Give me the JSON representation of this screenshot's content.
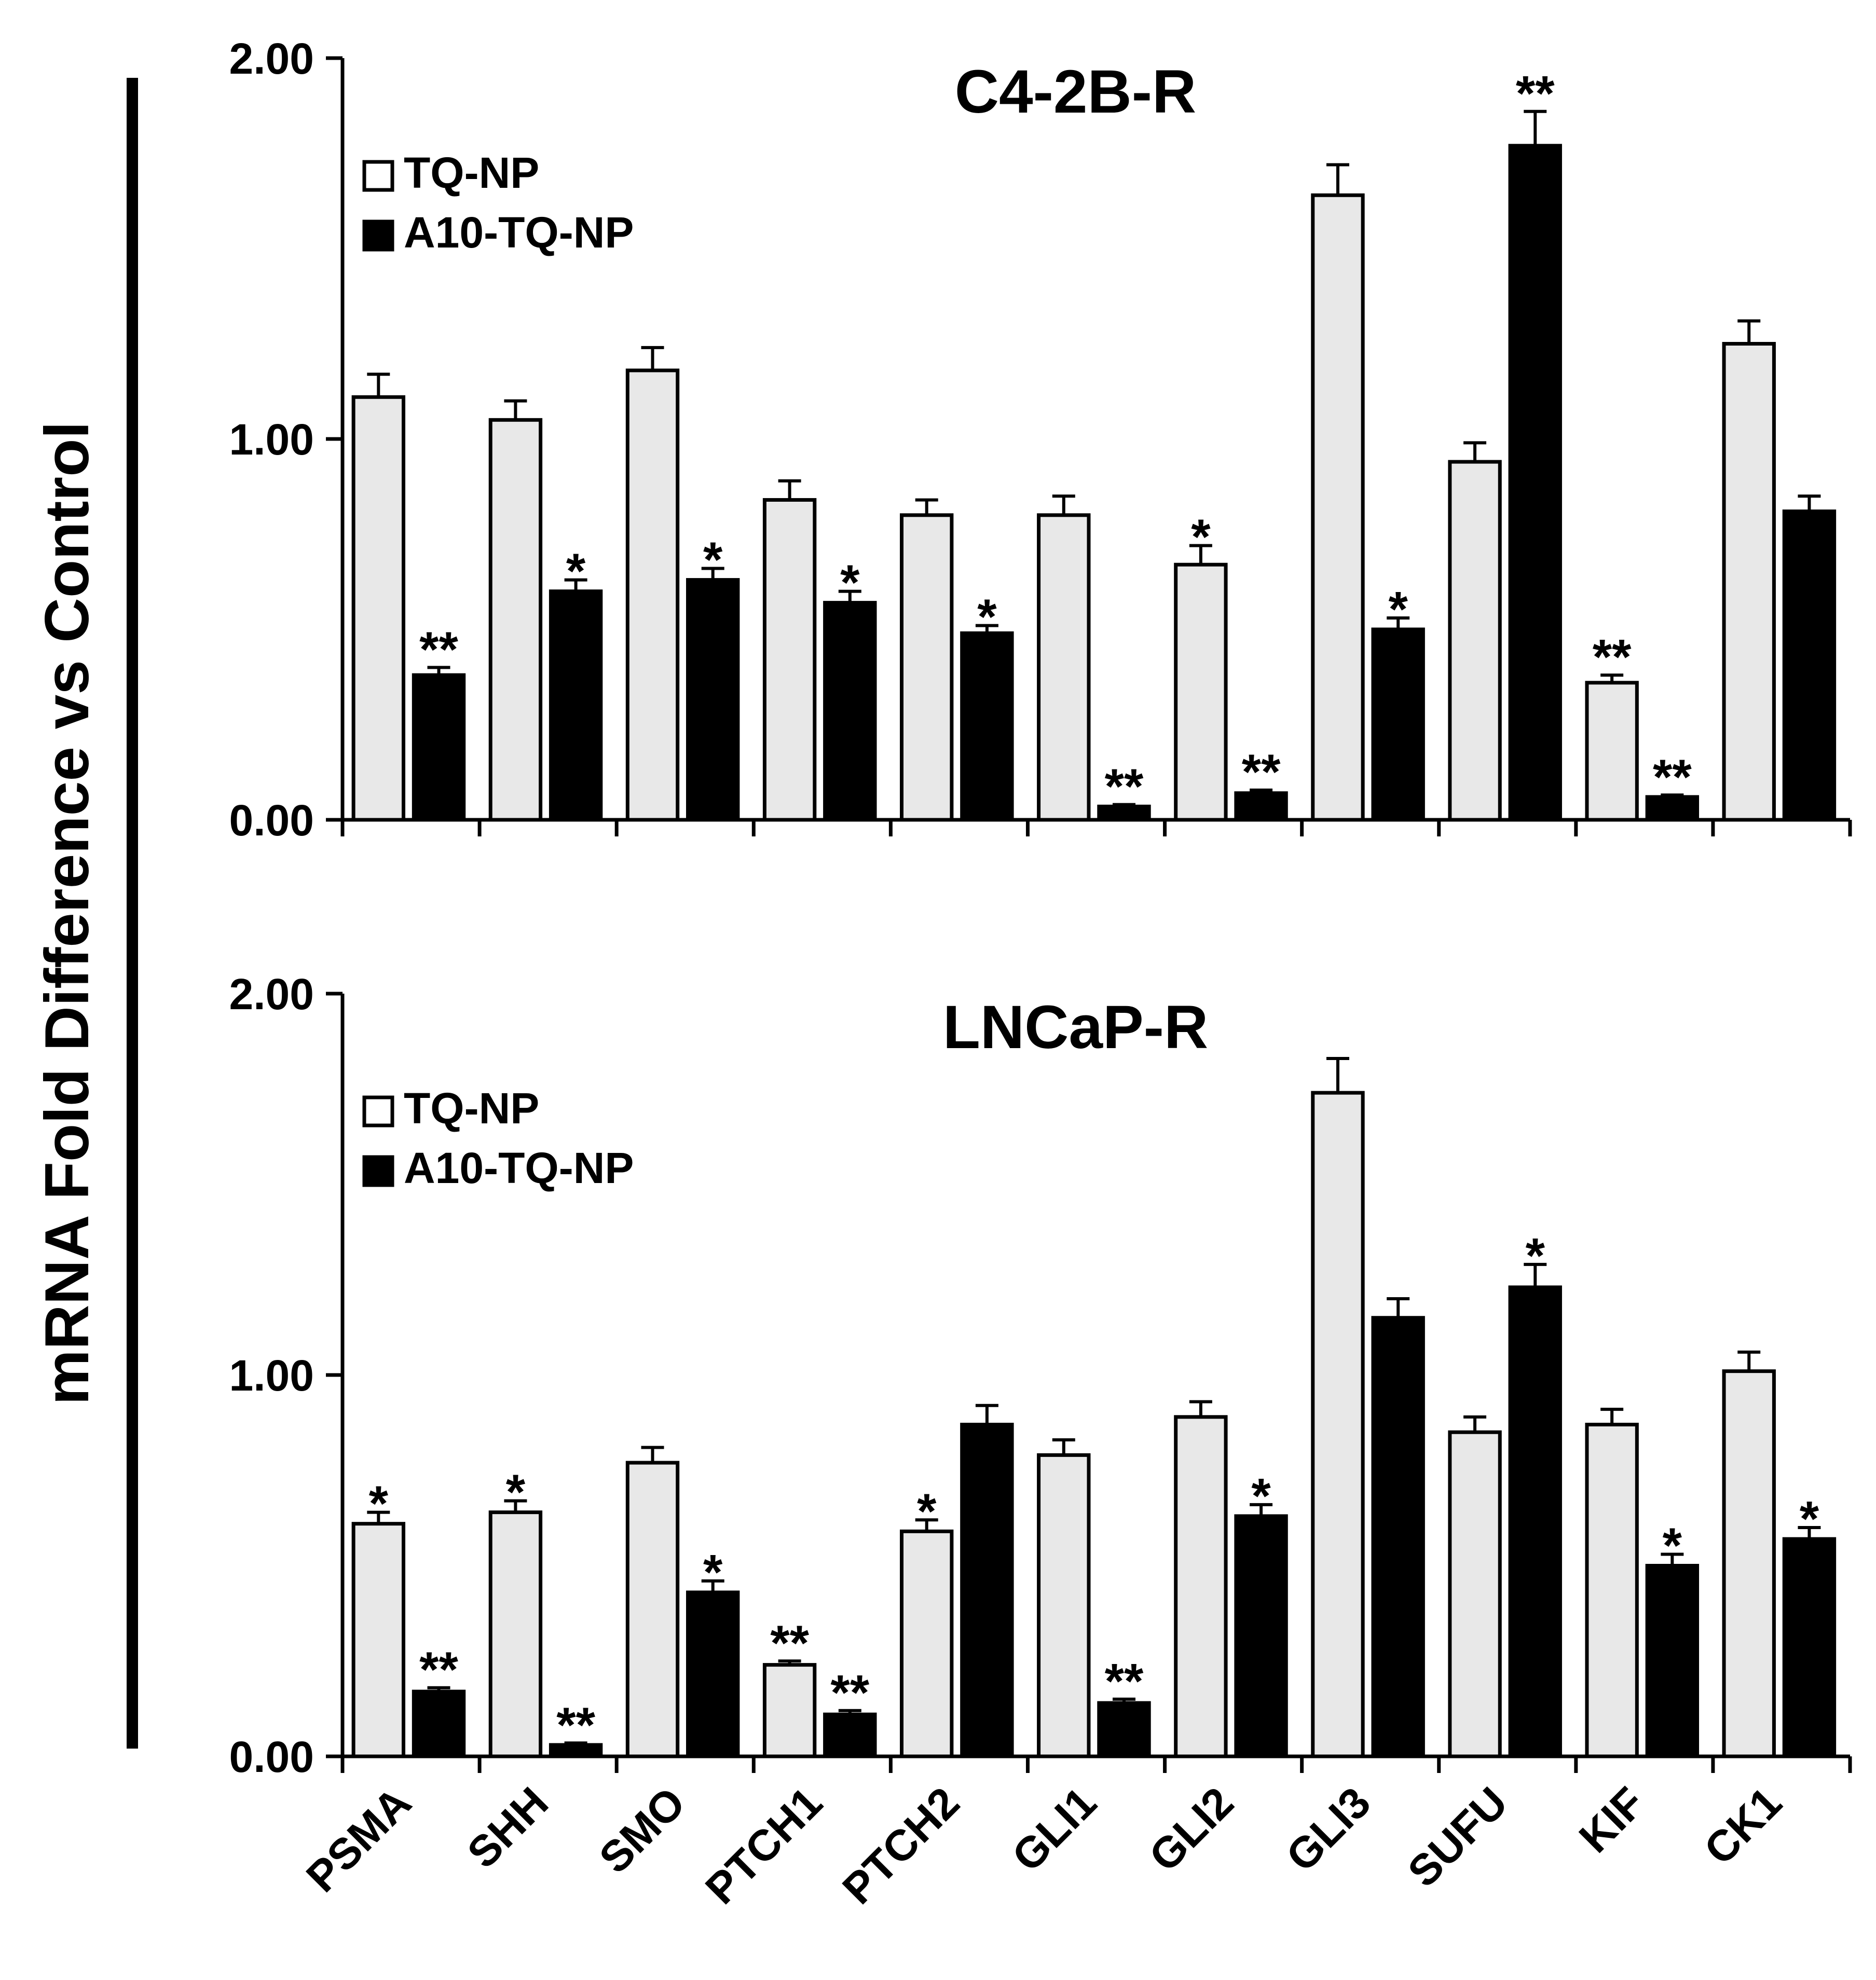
{
  "figure": {
    "ylabel": "mRNA Fold Difference vs Control"
  },
  "chart_data": [
    {
      "type": "bar",
      "title": "C4-2B-R",
      "xlabel": "",
      "ylabel": "mRNA Fold Difference vs Control",
      "ylim": [
        0,
        2
      ],
      "yticks": [
        "0.00",
        "1.00",
        "2.00"
      ],
      "categories": [
        "PSMA",
        "SHH",
        "SMO",
        "PTCH1",
        "PTCH2",
        "GLI1",
        "GLI2",
        "GLI3",
        "SUFU",
        "KIF",
        "CK1"
      ],
      "legend_position": "top-left",
      "series": [
        {
          "name": "TQ-NP",
          "color": "#e8e8e8",
          "values": [
            1.11,
            1.05,
            1.18,
            0.84,
            0.8,
            0.8,
            0.67,
            1.64,
            0.94,
            0.36,
            1.25
          ],
          "errors": [
            0.06,
            0.05,
            0.06,
            0.05,
            0.04,
            0.05,
            0.05,
            0.08,
            0.05,
            0.02,
            0.06
          ],
          "significance": [
            "",
            "",
            "",
            "",
            "",
            "",
            "*",
            "",
            "",
            "**",
            ""
          ]
        },
        {
          "name": "A10-TQ-NP",
          "color": "#000000",
          "values": [
            0.38,
            0.6,
            0.63,
            0.57,
            0.49,
            0.035,
            0.07,
            0.5,
            1.77,
            0.06,
            0.81
          ],
          "errors": [
            0.02,
            0.03,
            0.03,
            0.03,
            0.02,
            0.005,
            0.008,
            0.03,
            0.09,
            0.005,
            0.04
          ],
          "significance": [
            "**",
            "*",
            "*",
            "*",
            "*",
            "**",
            "**",
            "*",
            "**",
            "**",
            ""
          ]
        }
      ]
    },
    {
      "type": "bar",
      "title": "LNCaP-R",
      "xlabel": "",
      "ylabel": "mRNA Fold Difference vs Control",
      "ylim": [
        0,
        2
      ],
      "yticks": [
        "0.00",
        "1.00",
        "2.00"
      ],
      "categories": [
        "PSMA",
        "SHH",
        "SMO",
        "PTCH1",
        "PTCH2",
        "GLI1",
        "GLI2",
        "GLI3",
        "SUFU",
        "KIF",
        "CK1"
      ],
      "legend_position": "top-left",
      "series": [
        {
          "name": "TQ-NP",
          "color": "#e8e8e8",
          "values": [
            0.61,
            0.64,
            0.77,
            0.24,
            0.59,
            0.79,
            0.89,
            1.74,
            0.85,
            0.87,
            1.01
          ],
          "errors": [
            0.03,
            0.03,
            0.04,
            0.01,
            0.03,
            0.04,
            0.04,
            0.09,
            0.04,
            0.04,
            0.05
          ],
          "significance": [
            "*",
            "*",
            "",
            "**",
            "*",
            "",
            "",
            "",
            "",
            "",
            ""
          ]
        },
        {
          "name": "A10-TQ-NP",
          "color": "#000000",
          "values": [
            0.17,
            0.03,
            0.43,
            0.11,
            0.87,
            0.14,
            0.63,
            1.15,
            1.23,
            0.5,
            0.57
          ],
          "errors": [
            0.01,
            0.005,
            0.03,
            0.01,
            0.05,
            0.01,
            0.03,
            0.05,
            0.06,
            0.03,
            0.03
          ],
          "significance": [
            "**",
            "**",
            "*",
            "**",
            "",
            "**",
            "*",
            "",
            "*",
            "*",
            "*"
          ]
        }
      ]
    }
  ]
}
